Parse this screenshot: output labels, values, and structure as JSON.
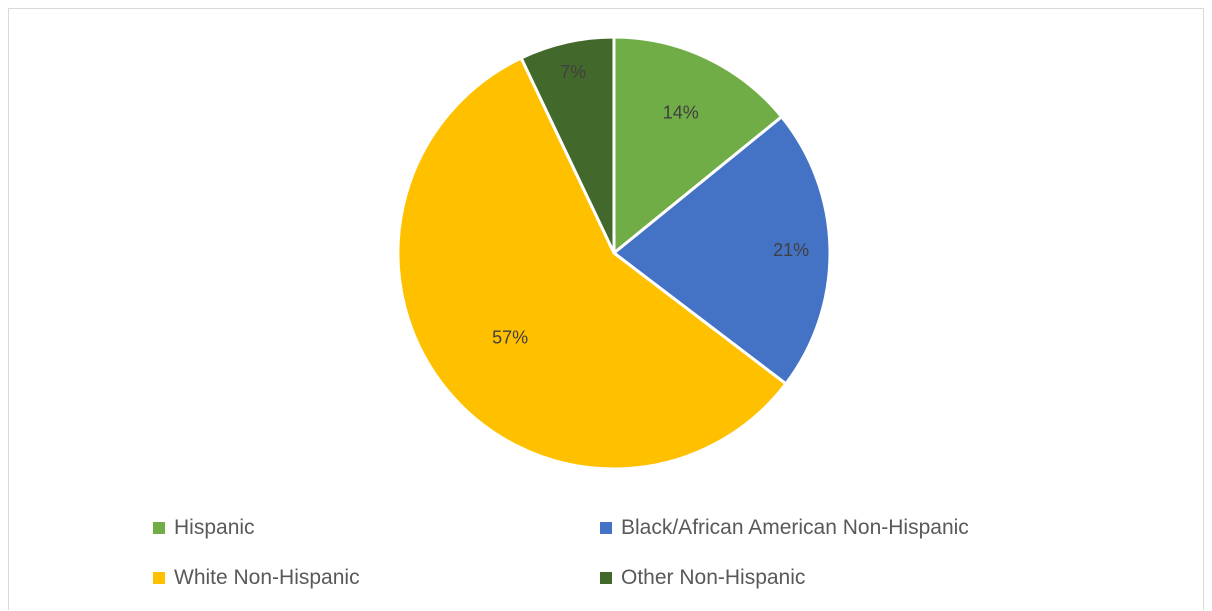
{
  "chart_data": {
    "type": "pie",
    "title": "",
    "legend_position": "bottom",
    "start_angle_deg": 0,
    "direction": "clockwise",
    "slices": [
      {
        "name": "Hispanic",
        "value": 14,
        "label": "14%",
        "color": "#70ad47"
      },
      {
        "name": "Black/African American Non-Hispanic",
        "value": 21,
        "label": "21%",
        "color": "#4472c4"
      },
      {
        "name": "White Non-Hispanic",
        "value": 57,
        "label": "57%",
        "color": "#ffc000"
      },
      {
        "name": "Other Non-Hispanic",
        "value": 7,
        "label": "7%",
        "color": "#43682b"
      }
    ]
  }
}
